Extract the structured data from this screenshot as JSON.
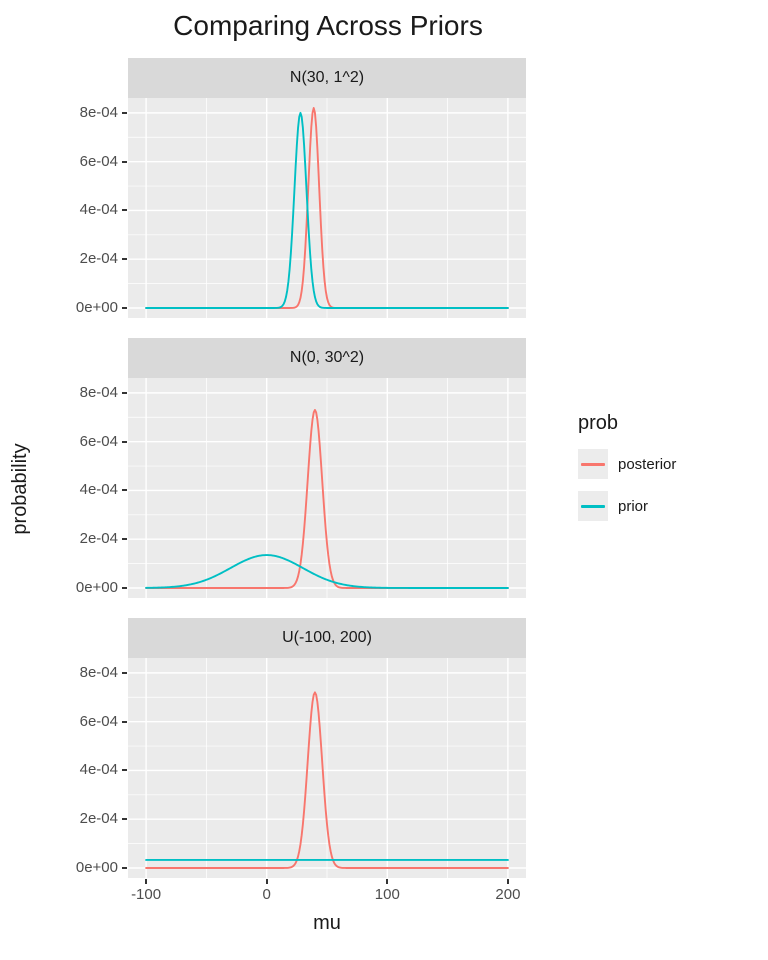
{
  "title": "Comparing Across Priors",
  "axes": {
    "x_label": "mu",
    "y_label": "probability",
    "x_tick_labels": [
      "-100",
      "0",
      "100",
      "200"
    ],
    "y_tick_labels": [
      "0e+00",
      "2e-04",
      "4e-04",
      "6e-04",
      "8e-04"
    ]
  },
  "legend": {
    "title": "prob",
    "entries": [
      {
        "label": "posterior",
        "color": "#F8766D"
      },
      {
        "label": "prior",
        "color": "#00BFC4"
      }
    ]
  },
  "theme": {
    "panel_background": "#EBEBEB",
    "strip_background": "#D9D9D9",
    "grid_major": "#FFFFFF",
    "grid_minor": "#FFFFFF",
    "tick_text": "#4D4D4D"
  },
  "chart_data": {
    "type": "line",
    "title": "Comparing Across Priors",
    "xlabel": "mu",
    "ylabel": "probability",
    "x_domain": [
      -100,
      200
    ],
    "y_domain": [
      0,
      0.00082
    ],
    "x_tick_values": [
      -100,
      0,
      100,
      200
    ],
    "x_minor_values": [
      -50,
      50,
      150
    ],
    "y_tick_values": [
      0,
      0.0002,
      0.0004,
      0.0006,
      0.0008
    ],
    "y_minor_values": [
      0.0001,
      0.0003,
      0.0005,
      0.0007
    ],
    "legend_position": "right",
    "facets": [
      {
        "label": "N(30, 1^2)",
        "series": [
          {
            "name": "posterior",
            "color": "#F8766D",
            "shape": "gaussian",
            "mean": 39,
            "sd": 4.5,
            "peak": 0.00082
          },
          {
            "name": "prior",
            "color": "#00BFC4",
            "shape": "gaussian",
            "mean": 28,
            "sd": 5,
            "peak": 0.0008
          }
        ]
      },
      {
        "label": "N(0, 30^2)",
        "series": [
          {
            "name": "posterior",
            "color": "#F8766D",
            "shape": "gaussian",
            "mean": 40,
            "sd": 6,
            "peak": 0.00073
          },
          {
            "name": "prior",
            "color": "#00BFC4",
            "shape": "gaussian",
            "mean": 0,
            "sd": 30,
            "peak": 0.000135
          }
        ]
      },
      {
        "label": "U(-100, 200)",
        "series": [
          {
            "name": "posterior",
            "color": "#F8766D",
            "shape": "gaussian",
            "mean": 40,
            "sd": 6,
            "peak": 0.00072
          },
          {
            "name": "prior",
            "color": "#00BFC4",
            "shape": "uniform",
            "level": 3.3e-05
          }
        ]
      }
    ]
  }
}
